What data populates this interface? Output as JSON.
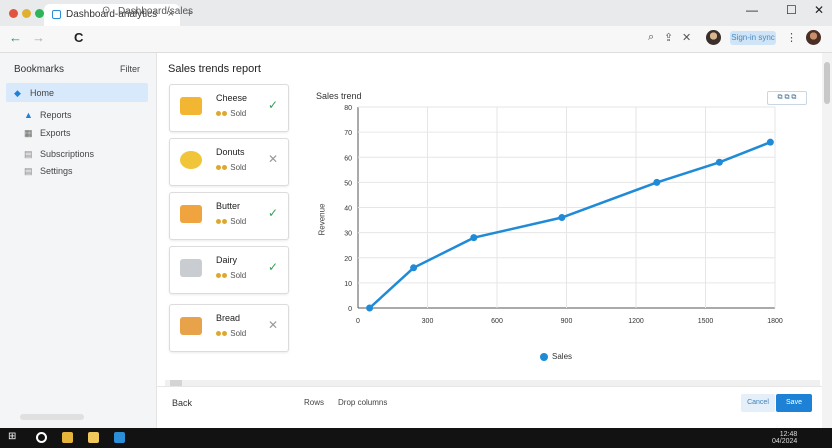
{
  "browser": {
    "tab_title": "Dashboard-analytics",
    "tab_close": "×",
    "new_tab": "+",
    "url": "Dashboard/sales",
    "url_icon": "⊙",
    "nav": {
      "back": "←",
      "forward": "→",
      "reload": "C"
    },
    "right_controls": {
      "search": "⌕",
      "share": "⇪",
      "close": "✕",
      "more": "⋮"
    },
    "profile_button": "Sign-in sync",
    "window_controls": {
      "minimize": "—",
      "maximize": "☐",
      "close": "✕"
    },
    "dot_colors": [
      "#e2533f",
      "#e0b030",
      "#2fb45c"
    ]
  },
  "sidebar": {
    "title": "Bookmarks",
    "right_label": "Filter",
    "items": [
      {
        "label": "Home",
        "icon": "home-icon",
        "active": true
      },
      {
        "label": "Reports",
        "icon": "user-icon",
        "active": false
      },
      {
        "label": "Exports",
        "icon": "chart-icon",
        "active": false
      },
      {
        "label": "Subscriptions",
        "icon": "list-icon",
        "active": false
      },
      {
        "label": "Settings",
        "icon": "gear-icon",
        "active": false
      }
    ]
  },
  "main": {
    "page_title": "Sales trends report",
    "cards": [
      {
        "name": "Cheese",
        "sub": "Sold",
        "status": "check",
        "color": "#f2b632"
      },
      {
        "name": "Donuts",
        "sub": "Sold",
        "status": "cross",
        "color": "#f0c53a"
      },
      {
        "name": "Butter",
        "sub": "Sold",
        "status": "check",
        "color": "#f0a440"
      },
      {
        "name": "Dairy",
        "sub": "Sold",
        "status": "check",
        "color": "#c9cdd2"
      },
      {
        "name": "Bread",
        "sub": "Sold",
        "status": "cross",
        "color": "#e8a24a"
      }
    ],
    "chart_control": "⧉ ⧉ ⧉"
  },
  "chart_data": {
    "type": "line",
    "title": "Sales trend",
    "ylabel": "Revenue",
    "xlabel": "",
    "x_ticks": [
      "0",
      "300",
      "600",
      "900",
      "1200",
      "1500",
      "1800"
    ],
    "y_ticks": [
      "0",
      "10",
      "20",
      "30",
      "40",
      "50",
      "60",
      "70",
      "80"
    ],
    "xlim": [
      0,
      1800
    ],
    "ylim": [
      0,
      80
    ],
    "grid": true,
    "legend": "bottom",
    "series": [
      {
        "name": "Sales",
        "color": "#1f8ad6",
        "x": [
          50,
          240,
          500,
          880,
          1290,
          1560,
          1780
        ],
        "y": [
          0,
          16,
          28,
          36,
          50,
          58,
          66
        ]
      }
    ]
  },
  "bottom": {
    "label_left": "Back",
    "label_mid": "Rows",
    "label_right": "Drop columns",
    "cancel": "Cancel",
    "ok": "Save"
  },
  "taskbar": {
    "time": "12:48",
    "date": "04/2024",
    "icon_colors": [
      "#ffffff",
      "#e4b53a",
      "#f0c75a",
      "#2b8fd8"
    ]
  }
}
